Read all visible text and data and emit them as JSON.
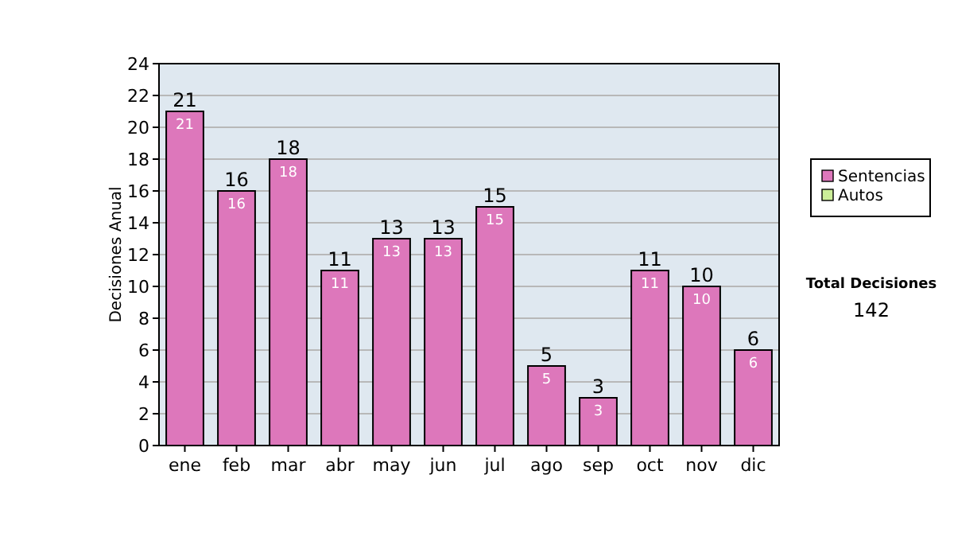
{
  "chart_data": {
    "type": "bar",
    "stacked": true,
    "categories": [
      "ene",
      "feb",
      "mar",
      "abr",
      "may",
      "jun",
      "jul",
      "ago",
      "sep",
      "oct",
      "nov",
      "dic"
    ],
    "series": [
      {
        "name": "Sentencias",
        "color": "#dd77bb",
        "values": [
          21,
          16,
          18,
          11,
          13,
          13,
          15,
          5,
          3,
          11,
          10,
          6
        ],
        "value_labels": [
          "21",
          "16",
          "18",
          "11",
          "13",
          "13",
          "15",
          "5",
          "3",
          "11",
          "10",
          "6"
        ]
      },
      {
        "name": "Autos",
        "color": "#ccee99",
        "values": [
          0,
          0,
          0,
          0,
          0,
          0,
          0,
          0,
          0,
          0,
          0,
          0
        ]
      }
    ],
    "totals": [
      "21",
      "16",
      "18",
      "11",
      "13",
      "13",
      "15",
      "5",
      "3",
      "11",
      "10",
      "6"
    ],
    "ylabel": "Decisiones Anual",
    "ylim": [
      0,
      24
    ],
    "yticks": [
      0,
      2,
      4,
      6,
      8,
      10,
      12,
      14,
      16,
      18,
      20,
      22,
      24
    ],
    "grid": "y",
    "legend": "right",
    "annotations": [
      "Total Decisiones",
      "142"
    ]
  }
}
